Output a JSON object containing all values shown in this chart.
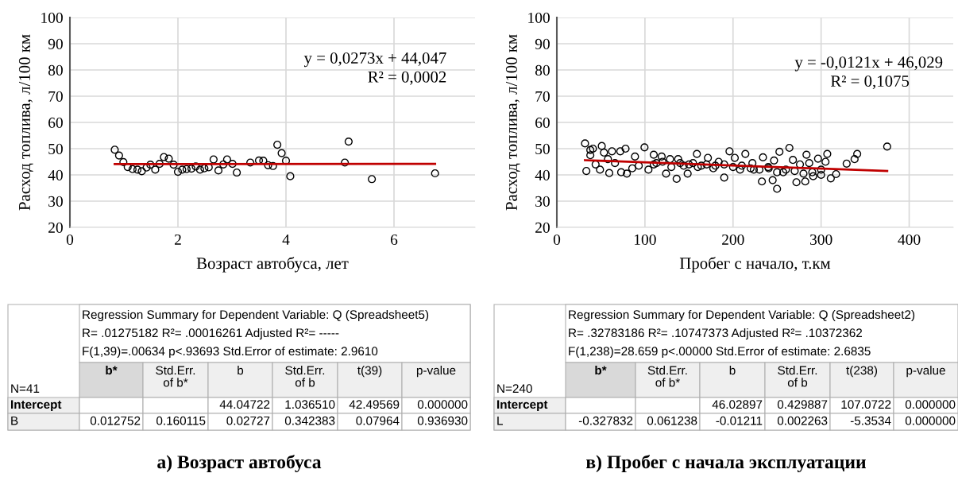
{
  "chart_data": [
    {
      "type": "scatter",
      "title": "а) Возраст автобуса",
      "xlabel": "Возраст автобуса, лет",
      "ylabel": "Расход топлива, л/100 км",
      "xlim": [
        0,
        7.5
      ],
      "xticks": [
        0,
        2,
        4,
        6
      ],
      "ylim": [
        20,
        100
      ],
      "yticks": [
        20,
        30,
        40,
        50,
        60,
        70,
        80,
        90,
        100
      ],
      "grid": true,
      "series": [
        {
          "marker": "circle",
          "color": "#000000",
          "x": [
            0.83,
            0.91,
            0.99,
            1.07,
            1.16,
            1.25,
            1.33,
            1.42,
            1.49,
            1.58,
            1.66,
            1.74,
            1.83,
            1.92,
            2.0,
            2.08,
            2.16,
            2.25,
            2.33,
            2.41,
            2.49,
            2.57,
            2.66,
            2.75,
            2.84,
            2.91,
            3.01,
            3.09,
            3.34,
            3.5,
            3.58,
            3.67,
            3.76,
            3.84,
            3.92,
            4.0,
            4.08,
            5.09,
            5.16,
            5.59,
            6.76
          ],
          "values": [
            49.6,
            47.4,
            44.9,
            43.0,
            42.2,
            42.0,
            41.4,
            42.8,
            43.9,
            42.0,
            44.2,
            46.8,
            46.2,
            43.9,
            41.2,
            42.0,
            42.2,
            42.4,
            43.2,
            42.0,
            42.5,
            42.9,
            45.9,
            41.7,
            44.0,
            45.9,
            44.2,
            40.9,
            44.7,
            45.5,
            45.4,
            43.7,
            43.4,
            51.5,
            48.3,
            45.4,
            39.5,
            44.7,
            52.7,
            38.4,
            40.6
          ]
        },
        {
          "type": "line",
          "marker": "none",
          "color": "#c00000",
          "x": [
            0.83,
            6.76
          ],
          "values": [
            44.1,
            44.2
          ]
        }
      ],
      "annotations": [
        "y = 0,0273x + 44,047",
        "R² = 0,0002",
        "Regression Summary for Dependent Variable: Q (Spreadsheet5)",
        "R= .01275182 R²= .00016261 Adjusted R²= -----",
        "F(1,39)=.00634 p<.93693 Std.Error of estimate: 2.9610",
        "N=41",
        "b*",
        "Std.Err.\nof b*",
        "b",
        "Std.Err.\nof b",
        "t(39)",
        "p-value",
        "Intercept",
        "44.04722",
        "1.036510",
        "42.49569",
        "0.000000",
        "B",
        "0.012752",
        "0.160115",
        "0.02727",
        "0.342383",
        "0.07964",
        "0.936930"
      ]
    },
    {
      "type": "scatter",
      "title": "в) Пробег с начала эксплуатации",
      "xlabel": "Пробег с начало, т.км",
      "ylabel": "Расход топлива, л/100 км",
      "xlim": [
        0,
        450
      ],
      "xticks": [
        0,
        100,
        200,
        300,
        400
      ],
      "ylim": [
        20,
        100
      ],
      "yticks": [
        20,
        30,
        40,
        50,
        60,
        70,
        80,
        90,
        100
      ],
      "grid": true,
      "series": [
        {
          "marker": "circle",
          "color": "#000000",
          "x": [
            32,
            33.5,
            38,
            41,
            38,
            44,
            49,
            51,
            53.5,
            58,
            59.5,
            62.6,
            66,
            72,
            73,
            78,
            79.5,
            85.6,
            88.7,
            93,
            99.5,
            104,
            110,
            113,
            119,
            124,
            128.5,
            136,
            137.7,
            144,
            148.5,
            154.6,
            159,
            164,
            171.5,
            177.6,
            183.7,
            190,
            196,
            202,
            208,
            214,
            222,
            223.6,
            232.8,
            234,
            240.5,
            245,
            246.6,
            250,
            252.7,
            257,
            264,
            268,
            272,
            276,
            282,
            283.4,
            286.5,
            291,
            296.5,
            300,
            305,
            307,
            311,
            317,
            329,
            338,
            341,
            375,
            110,
            120,
            130,
            140,
            150,
            160,
            170,
            180,
            190,
            200,
            210,
            220,
            230,
            240,
            250,
            260,
            270,
            280,
            290,
            300
          ],
          "values": [
            52.0,
            41.5,
            49.5,
            50,
            47.5,
            44,
            42,
            51,
            48.5,
            46,
            40.7,
            49,
            44.5,
            49,
            41,
            50,
            40.5,
            42.5,
            47,
            43.5,
            50.5,
            42,
            47.7,
            44.5,
            47,
            40.5,
            46,
            38.5,
            46,
            43.5,
            40.5,
            44.5,
            48,
            43.5,
            46.5,
            42.5,
            45,
            39,
            49,
            46.5,
            42,
            48,
            44.5,
            42,
            37.5,
            46.7,
            42.5,
            38,
            45.5,
            34.7,
            48.8,
            41,
            50.3,
            45.7,
            37.2,
            44,
            37.5,
            47.7,
            44.5,
            39.5,
            46.2,
            42,
            45,
            48,
            38.7,
            40.3,
            44.3,
            46,
            48,
            50.8,
            44,
            45,
            43,
            44.5,
            44,
            43,
            44,
            43.5,
            44,
            43,
            43.5,
            42.5,
            42,
            43,
            41,
            42,
            41.5,
            40.5,
            41,
            40
          ]
        },
        {
          "type": "line",
          "marker": "none",
          "color": "#c00000",
          "x": [
            32,
            375
          ],
          "values": [
            45.6,
            41.5
          ]
        }
      ],
      "annotations": [
        "y = -0,0121x + 46,029",
        "R² = 0,1075",
        "Regression Summary for Dependent Variable: Q (Spreadsheet2)",
        "R= .32783186 R²= .10747373 Adjusted R²= .10372362",
        "F(1,238)=28.659 p<.00000 Std.Error of estimate: 2.6835",
        "N=240",
        "b*",
        "Std.Err.\nof b*",
        "b",
        "Std.Err.\nof b",
        "t(238)",
        "p-value",
        "Intercept",
        "46.02897",
        "0.429887",
        "107.0722",
        "0.000000",
        "L",
        "-0.327832",
        "0.061238",
        "-0.01211",
        "0.002263",
        "-5.3534",
        "0.000000"
      ]
    }
  ]
}
